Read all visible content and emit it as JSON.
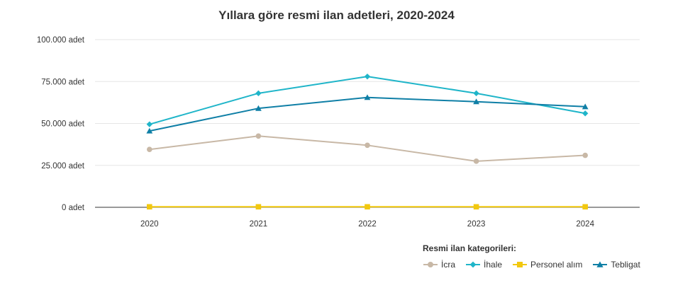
{
  "chart_data": {
    "type": "line",
    "title": "Yıllara göre resmi ilan adetleri, 2020-2024",
    "x": [
      "2020",
      "2021",
      "2022",
      "2023",
      "2024"
    ],
    "ylim": [
      0,
      100000
    ],
    "yticks": [
      0,
      25000,
      50000,
      75000,
      100000
    ],
    "ytick_labels": [
      "0 adet",
      "25.000 adet",
      "50.000 adet",
      "75.000 adet",
      "100.000 adet"
    ],
    "grid": true,
    "legend_title": "Resmi ilan kategorileri:",
    "legend_position": "bottom-right",
    "series": [
      {
        "name": "İcra",
        "color": "#c8b8a6",
        "marker": "circle",
        "values": [
          34500,
          42500,
          37000,
          27500,
          31000
        ]
      },
      {
        "name": "İhale",
        "color": "#1fb5c9",
        "marker": "diamond",
        "values": [
          49500,
          68000,
          78000,
          68000,
          56000
        ]
      },
      {
        "name": "Personel alım",
        "color": "#f2c80f",
        "marker": "square",
        "values": [
          300,
          300,
          300,
          300,
          300
        ]
      },
      {
        "name": "Tebligat",
        "color": "#0f7fa6",
        "marker": "triangle",
        "values": [
          45500,
          59000,
          65500,
          63000,
          60000
        ]
      }
    ]
  }
}
